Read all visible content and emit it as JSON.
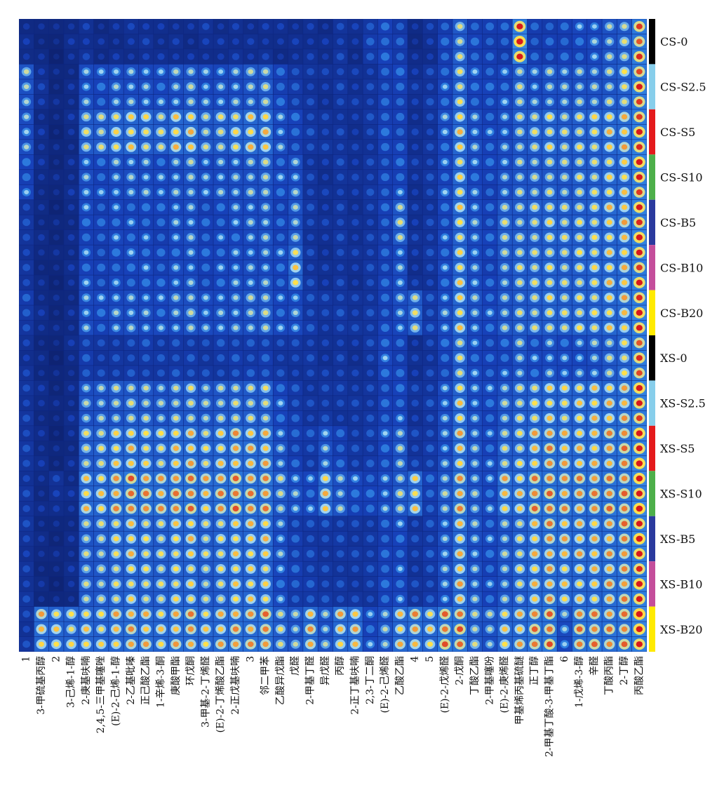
{
  "chart_data": {
    "type": "heatmap",
    "title": "",
    "xlabel": "",
    "ylabel": "",
    "compounds": [
      "1",
      "3-甲硫基丙醇",
      "2",
      "3-己烯-1-醇",
      "2-庚基呋喃",
      "2,4,5-三甲基噻唑",
      "(E)-2-己烯-1-醇",
      "2-乙基吡嗪",
      "正己酸乙酯",
      "1-辛烯-3-酮",
      "庚酸甲酯",
      "环戊酮",
      "3-甲基-2-丁烯醛",
      "(E)-2-丁烯酸乙酯",
      "2-正戊基呋喃",
      "3",
      "邻二甲苯",
      "乙酸异戊酯",
      "戊醛",
      "2-甲基丁醛",
      "异戊醛",
      "丙醇",
      "2-正丁基呋喃",
      "2,3-丁二酮",
      "(E)-2-己烯醛",
      "乙酸乙酯",
      "4",
      "5",
      "(E)-2-戊烯醛",
      "2-戊酮",
      "丁酸乙酯",
      "2-甲基噻吩",
      "(E)-2-庚烯醛",
      "甲基烯丙基硫醚",
      "正丁醇",
      "2-甲基丁酸-3-甲基丁酯",
      "6",
      "1-戊烯-3-醇",
      "辛醛",
      "丁酸丙酯",
      "2-丁醇",
      "丙酸乙酯"
    ],
    "groups": [
      {
        "name": "CS-0",
        "color": "#000000",
        "levels": [
          0.22,
          0.18,
          0.14,
          0.2,
          0.25,
          0.2,
          0.22,
          0.24,
          0.25,
          0.22,
          0.24,
          0.22,
          0.25,
          0.22,
          0.24,
          0.24,
          0.25,
          0.22,
          0.22,
          0.24,
          0.22,
          0.3,
          0.22,
          0.35,
          0.42,
          0.38,
          0.2,
          0.25,
          0.4,
          0.6,
          0.42,
          0.4,
          0.38,
          0.9,
          0.38,
          0.4,
          0.42,
          0.45,
          0.48,
          0.55,
          0.62,
          0.85
        ]
      },
      {
        "name": "CS-S2.5",
        "color": "#87ceeb",
        "levels": [
          0.55,
          0.25,
          0.15,
          0.2,
          0.5,
          0.45,
          0.5,
          0.5,
          0.5,
          0.48,
          0.52,
          0.55,
          0.48,
          0.5,
          0.52,
          0.55,
          0.58,
          0.42,
          0.35,
          0.3,
          0.25,
          0.3,
          0.25,
          0.3,
          0.4,
          0.42,
          0.25,
          0.3,
          0.45,
          0.65,
          0.45,
          0.42,
          0.45,
          0.6,
          0.5,
          0.55,
          0.52,
          0.55,
          0.55,
          0.6,
          0.65,
          0.85
        ]
      },
      {
        "name": "CS-S5",
        "color": "#e41a1c",
        "levels": [
          0.5,
          0.22,
          0.15,
          0.2,
          0.62,
          0.6,
          0.68,
          0.7,
          0.66,
          0.62,
          0.7,
          0.72,
          0.6,
          0.62,
          0.66,
          0.7,
          0.72,
          0.5,
          0.42,
          0.32,
          0.28,
          0.3,
          0.25,
          0.3,
          0.42,
          0.4,
          0.25,
          0.3,
          0.48,
          0.7,
          0.5,
          0.45,
          0.5,
          0.6,
          0.62,
          0.66,
          0.62,
          0.65,
          0.66,
          0.7,
          0.72,
          0.88
        ]
      },
      {
        "name": "CS-S10",
        "color": "#4daf4a",
        "levels": [
          0.45,
          0.2,
          0.15,
          0.2,
          0.5,
          0.45,
          0.5,
          0.5,
          0.5,
          0.48,
          0.52,
          0.55,
          0.48,
          0.5,
          0.52,
          0.55,
          0.58,
          0.45,
          0.5,
          0.3,
          0.25,
          0.3,
          0.25,
          0.3,
          0.4,
          0.45,
          0.25,
          0.3,
          0.45,
          0.68,
          0.48,
          0.42,
          0.5,
          0.58,
          0.58,
          0.62,
          0.58,
          0.62,
          0.62,
          0.68,
          0.7,
          0.88
        ]
      },
      {
        "name": "CS-B5",
        "color": "#2b3a9e",
        "levels": [
          0.3,
          0.18,
          0.15,
          0.2,
          0.45,
          0.4,
          0.45,
          0.45,
          0.45,
          0.42,
          0.48,
          0.5,
          0.42,
          0.45,
          0.48,
          0.5,
          0.52,
          0.42,
          0.55,
          0.3,
          0.25,
          0.3,
          0.25,
          0.3,
          0.4,
          0.6,
          0.25,
          0.3,
          0.45,
          0.68,
          0.5,
          0.42,
          0.62,
          0.6,
          0.62,
          0.66,
          0.62,
          0.65,
          0.66,
          0.7,
          0.72,
          0.88
        ]
      },
      {
        "name": "CS-B10",
        "color": "#c44e9b",
        "levels": [
          0.3,
          0.18,
          0.15,
          0.2,
          0.45,
          0.4,
          0.45,
          0.45,
          0.45,
          0.42,
          0.48,
          0.5,
          0.42,
          0.45,
          0.48,
          0.5,
          0.52,
          0.45,
          0.68,
          0.3,
          0.25,
          0.3,
          0.25,
          0.3,
          0.4,
          0.5,
          0.25,
          0.3,
          0.45,
          0.68,
          0.5,
          0.42,
          0.55,
          0.62,
          0.62,
          0.66,
          0.62,
          0.65,
          0.66,
          0.7,
          0.72,
          0.88
        ]
      },
      {
        "name": "CS-B20",
        "color": "#ffea00",
        "levels": [
          0.35,
          0.2,
          0.15,
          0.2,
          0.5,
          0.45,
          0.5,
          0.5,
          0.5,
          0.48,
          0.52,
          0.55,
          0.48,
          0.5,
          0.52,
          0.55,
          0.58,
          0.45,
          0.5,
          0.35,
          0.3,
          0.32,
          0.28,
          0.32,
          0.42,
          0.5,
          0.62,
          0.35,
          0.5,
          0.7,
          0.52,
          0.45,
          0.55,
          0.62,
          0.62,
          0.66,
          0.62,
          0.65,
          0.66,
          0.7,
          0.72,
          0.88
        ]
      },
      {
        "name": "XS-0",
        "color": "#000000",
        "levels": [
          0.25,
          0.18,
          0.14,
          0.2,
          0.35,
          0.3,
          0.32,
          0.34,
          0.35,
          0.32,
          0.34,
          0.35,
          0.32,
          0.34,
          0.35,
          0.35,
          0.38,
          0.32,
          0.3,
          0.3,
          0.25,
          0.3,
          0.25,
          0.3,
          0.45,
          0.4,
          0.25,
          0.3,
          0.42,
          0.62,
          0.45,
          0.42,
          0.45,
          0.55,
          0.45,
          0.5,
          0.48,
          0.5,
          0.52,
          0.58,
          0.65,
          0.85
        ]
      },
      {
        "name": "XS-S2.5",
        "color": "#87ceeb",
        "levels": [
          0.3,
          0.2,
          0.15,
          0.2,
          0.55,
          0.55,
          0.58,
          0.6,
          0.58,
          0.55,
          0.6,
          0.62,
          0.55,
          0.58,
          0.62,
          0.62,
          0.62,
          0.45,
          0.35,
          0.3,
          0.32,
          0.3,
          0.28,
          0.3,
          0.42,
          0.45,
          0.28,
          0.32,
          0.48,
          0.7,
          0.5,
          0.45,
          0.55,
          0.62,
          0.66,
          0.7,
          0.66,
          0.68,
          0.7,
          0.72,
          0.75,
          0.88
        ]
      },
      {
        "name": "XS-S5",
        "color": "#e41a1c",
        "levels": [
          0.3,
          0.2,
          0.15,
          0.2,
          0.62,
          0.62,
          0.68,
          0.72,
          0.68,
          0.65,
          0.7,
          0.72,
          0.65,
          0.7,
          0.74,
          0.72,
          0.72,
          0.52,
          0.4,
          0.35,
          0.5,
          0.4,
          0.32,
          0.35,
          0.45,
          0.55,
          0.3,
          0.35,
          0.5,
          0.72,
          0.52,
          0.45,
          0.62,
          0.66,
          0.72,
          0.76,
          0.72,
          0.72,
          0.72,
          0.75,
          0.78,
          0.9
        ]
      },
      {
        "name": "XS-S10",
        "color": "#4daf4a",
        "levels": [
          0.3,
          0.2,
          0.25,
          0.2,
          0.7,
          0.7,
          0.76,
          0.8,
          0.76,
          0.74,
          0.78,
          0.8,
          0.72,
          0.76,
          0.8,
          0.78,
          0.78,
          0.6,
          0.5,
          0.45,
          0.72,
          0.55,
          0.45,
          0.42,
          0.48,
          0.6,
          0.7,
          0.4,
          0.55,
          0.75,
          0.55,
          0.48,
          0.72,
          0.7,
          0.78,
          0.8,
          0.76,
          0.76,
          0.76,
          0.78,
          0.8,
          0.92
        ]
      },
      {
        "name": "XS-B5",
        "color": "#2b3a9e",
        "levels": [
          0.28,
          0.18,
          0.15,
          0.2,
          0.6,
          0.6,
          0.66,
          0.7,
          0.66,
          0.64,
          0.68,
          0.7,
          0.62,
          0.66,
          0.7,
          0.7,
          0.7,
          0.5,
          0.38,
          0.35,
          0.32,
          0.32,
          0.3,
          0.32,
          0.42,
          0.45,
          0.3,
          0.35,
          0.5,
          0.72,
          0.52,
          0.45,
          0.55,
          0.64,
          0.72,
          0.76,
          0.72,
          0.72,
          0.72,
          0.75,
          0.78,
          0.9
        ]
      },
      {
        "name": "XS-B10",
        "color": "#c44e9b",
        "levels": [
          0.28,
          0.18,
          0.15,
          0.2,
          0.58,
          0.58,
          0.64,
          0.68,
          0.64,
          0.62,
          0.66,
          0.68,
          0.6,
          0.64,
          0.68,
          0.68,
          0.68,
          0.48,
          0.38,
          0.35,
          0.32,
          0.32,
          0.3,
          0.32,
          0.42,
          0.45,
          0.3,
          0.35,
          0.5,
          0.72,
          0.52,
          0.45,
          0.55,
          0.64,
          0.7,
          0.74,
          0.7,
          0.7,
          0.7,
          0.74,
          0.76,
          0.9
        ]
      },
      {
        "name": "XS-B20",
        "color": "#ffea00",
        "levels": [
          0.3,
          0.72,
          0.68,
          0.66,
          0.7,
          0.68,
          0.72,
          0.74,
          0.72,
          0.7,
          0.74,
          0.76,
          0.68,
          0.72,
          0.76,
          0.76,
          0.78,
          0.62,
          0.55,
          0.75,
          0.55,
          0.72,
          0.72,
          0.45,
          0.55,
          0.72,
          0.75,
          0.68,
          0.8,
          0.82,
          0.6,
          0.55,
          0.68,
          0.72,
          0.8,
          0.82,
          0.5,
          0.78,
          0.78,
          0.78,
          0.8,
          0.92
        ]
      }
    ],
    "replicates_per_group": 3,
    "value_scale": "normalized signal intensity 0-1",
    "colormap": [
      "#0b1a5c",
      "#1740b8",
      "#2e7fe0",
      "#9fd4f2",
      "#ffe04a",
      "#d7191c"
    ],
    "grid": false,
    "legend": "group color bar on right"
  }
}
